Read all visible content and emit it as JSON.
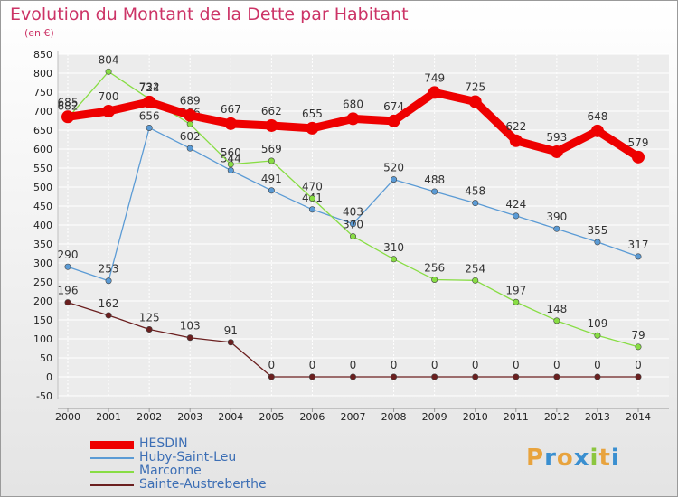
{
  "title": "Evolution du Montant de la Dette par Habitant",
  "unit": "(en €)",
  "logo": "Proxiti",
  "chart_data": {
    "type": "line",
    "x": [
      2000,
      2001,
      2002,
      2003,
      2004,
      2005,
      2006,
      2007,
      2008,
      2009,
      2010,
      2011,
      2012,
      2013,
      2014
    ],
    "ylim": [
      -50,
      850
    ],
    "yticks": [
      -50,
      0,
      50,
      100,
      150,
      200,
      250,
      300,
      350,
      400,
      450,
      500,
      550,
      600,
      650,
      700,
      750,
      800,
      850
    ],
    "grid": true,
    "legend_position": "bottom-left",
    "series": [
      {
        "name": "HESDIN",
        "color": "#ee0000",
        "values": [
          685,
          700,
          724,
          689,
          667,
          662,
          655,
          680,
          674,
          749,
          725,
          622,
          593,
          648,
          579
        ]
      },
      {
        "name": "Huby-Saint-Leu",
        "color": "#5b9bd5",
        "values": [
          290,
          253,
          656,
          602,
          544,
          491,
          441,
          403,
          520,
          488,
          458,
          424,
          390,
          355,
          317
        ]
      },
      {
        "name": "Marconne",
        "color": "#88dd44",
        "values": [
          682,
          804,
          732,
          666,
          560,
          569,
          470,
          370,
          310,
          256,
          254,
          197,
          148,
          109,
          79
        ]
      },
      {
        "name": "Sainte-Austreberthe",
        "color": "#6b1f1f",
        "values": [
          196,
          162,
          125,
          103,
          91,
          0,
          0,
          0,
          0,
          0,
          0,
          0,
          0,
          0,
          0
        ]
      }
    ]
  }
}
